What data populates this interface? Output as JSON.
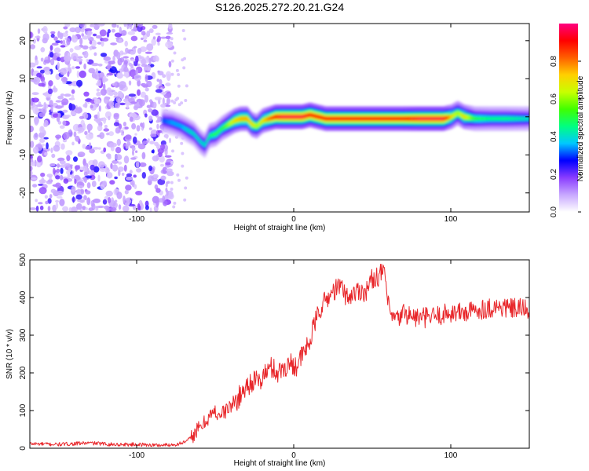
{
  "figure_title": "S126.2025.272.20.21.G24",
  "chart_data": [
    {
      "type": "heatmap",
      "title": "",
      "xlabel": "Height of straight line (km)",
      "ylabel": "Frequency (Hz)",
      "xlim": [
        -168,
        150
      ],
      "ylim": [
        -25,
        24.5
      ],
      "xticks": [
        -100,
        0,
        100
      ],
      "yticks": [
        -20,
        -10,
        0,
        10,
        20
      ],
      "colorbar": {
        "label": "Normalized spectral amplitude",
        "range": [
          0,
          1
        ],
        "ticks": [
          "0.0",
          "0.2",
          "0.4",
          "0.6",
          "0.8"
        ],
        "colors": [
          "#ffffff",
          "#c8a8ff",
          "#8a3cff",
          "#0000ff",
          "#00c8ff",
          "#00ff80",
          "#40ff00",
          "#c8ff00",
          "#ffd000",
          "#ff6000",
          "#ff0000",
          "#ff0080"
        ]
      },
      "noise_region_x": [
        -168,
        -78
      ],
      "ridge": {
        "x": [
          -84,
          -78,
          -72,
          -68,
          -64,
          -60,
          -57,
          -54,
          -50,
          -46,
          -42,
          -38,
          -34,
          -30,
          -27,
          -24,
          -20,
          -16,
          -12,
          -8,
          -4,
          0,
          5,
          10,
          15,
          20,
          30,
          40,
          50,
          60,
          70,
          80,
          90,
          95,
          100,
          104,
          108,
          115,
          125,
          135,
          150
        ],
        "y": [
          -1,
          -1.5,
          -2.5,
          -3.5,
          -4.5,
          -6.5,
          -7.5,
          -5,
          -4.5,
          -3,
          -2,
          -1,
          -0.5,
          -0.5,
          -2,
          -2.5,
          -1,
          -0.5,
          0,
          0,
          0,
          0,
          0,
          0.5,
          0,
          -0.5,
          -0.5,
          -0.5,
          -0.5,
          -0.5,
          -0.5,
          -0.5,
          -0.5,
          -0.5,
          0,
          1,
          0,
          -0.5,
          -0.5,
          -0.5,
          -0.5
        ],
        "amplitude": [
          0.3,
          0.35,
          0.35,
          0.4,
          0.4,
          0.4,
          0.4,
          0.45,
          0.5,
          0.5,
          0.6,
          0.7,
          0.75,
          0.75,
          0.7,
          0.6,
          0.7,
          0.8,
          0.9,
          0.95,
          0.95,
          0.95,
          0.95,
          0.9,
          0.9,
          0.9,
          0.9,
          0.9,
          0.9,
          0.9,
          0.9,
          0.95,
          0.95,
          0.95,
          0.7,
          0.6,
          0.7,
          0.5,
          0.45,
          0.45,
          0.4
        ]
      }
    },
    {
      "type": "line",
      "title": "",
      "xlabel": "Height of straight line (km)",
      "ylabel": "SNR (10 * v/v)",
      "xlim": [
        -168,
        150
      ],
      "ylim": [
        0,
        500
      ],
      "xticks": [
        -100,
        0,
        100
      ],
      "yticks": [
        0,
        100,
        200,
        300,
        400,
        500
      ],
      "series": [
        {
          "name": "SNR",
          "color": "#e8262a",
          "x": [
            -168,
            -150,
            -130,
            -115,
            -100,
            -85,
            -75,
            -68,
            -62,
            -58,
            -54,
            -50,
            -46,
            -42,
            -38,
            -34,
            -30,
            -26,
            -22,
            -18,
            -14,
            -10,
            -6,
            -2,
            2,
            6,
            10,
            14,
            18,
            22,
            26,
            30,
            34,
            38,
            42,
            46,
            50,
            55,
            58,
            60,
            62,
            66,
            70,
            75,
            80,
            90,
            100,
            110,
            120,
            130,
            140,
            150
          ],
          "y": [
            12,
            10,
            14,
            10,
            10,
            8,
            10,
            18,
            45,
            60,
            85,
            95,
            90,
            105,
            120,
            140,
            165,
            180,
            175,
            200,
            215,
            200,
            215,
            225,
            220,
            250,
            280,
            340,
            380,
            400,
            420,
            430,
            400,
            410,
            420,
            415,
            450,
            460,
            470,
            380,
            350,
            340,
            360,
            350,
            345,
            350,
            360,
            360,
            370,
            375,
            370,
            370
          ]
        }
      ]
    }
  ]
}
